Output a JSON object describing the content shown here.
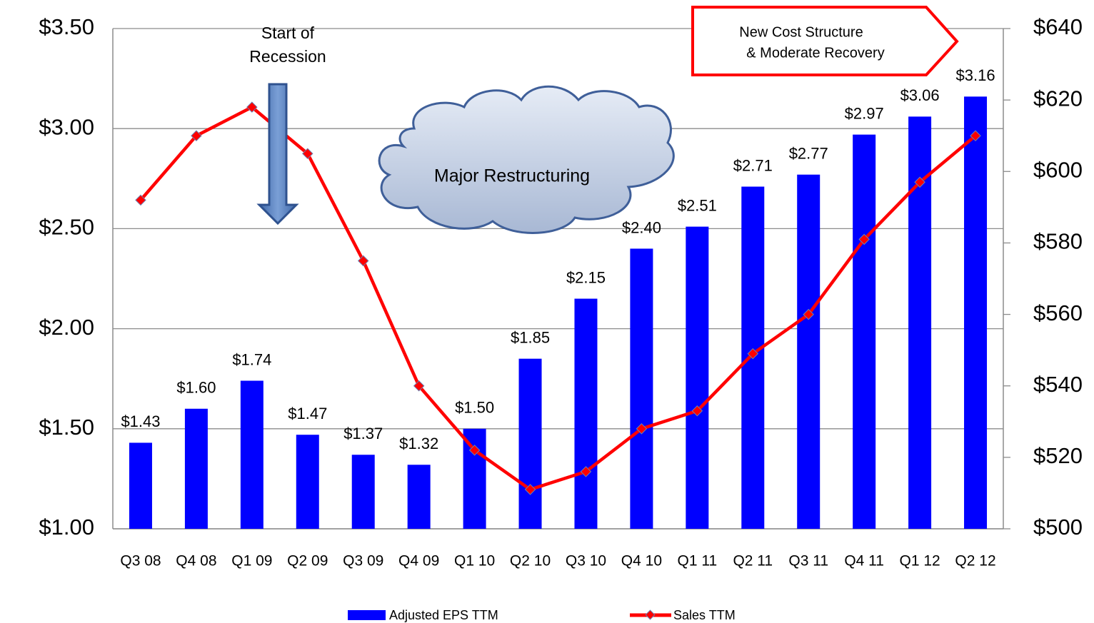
{
  "chart_data": {
    "type": "bar-line",
    "categories": [
      "Q3 08",
      "Q4 08",
      "Q1 09",
      "Q2 09",
      "Q3 09",
      "Q4 09",
      "Q1 10",
      "Q2 10",
      "Q3 10",
      "Q4 10",
      "Q1 11",
      "Q2 11",
      "Q3 11",
      "Q4 11",
      "Q1 12",
      "Q2 12"
    ],
    "series": [
      {
        "name": "Adjusted EPS TTM",
        "type": "bar",
        "color": "#0000ff",
        "values": [
          1.43,
          1.6,
          1.74,
          1.47,
          1.37,
          1.32,
          1.5,
          1.85,
          2.15,
          2.4,
          2.51,
          2.71,
          2.77,
          2.97,
          3.06,
          3.16
        ],
        "value_labels": [
          "$1.43",
          "$1.60",
          "$1.74",
          "$1.47",
          "$1.37",
          "$1.32",
          "$1.50",
          "$1.85",
          "$2.15",
          "$2.40",
          "$2.51",
          "$2.71",
          "$2.77",
          "$2.97",
          "$3.06",
          "$3.16"
        ]
      },
      {
        "name": "Sales TTM",
        "type": "line",
        "axis": "y2",
        "color": "#ff0000",
        "values": [
          592,
          610,
          618,
          605,
          575,
          540,
          522,
          511,
          516,
          528,
          533,
          549,
          560,
          581,
          597,
          610
        ]
      }
    ],
    "ylim": [
      1.0,
      3.5
    ],
    "yticks": [
      {
        "value": 1.0,
        "label": "$1.00"
      },
      {
        "value": 1.5,
        "label": "$1.50"
      },
      {
        "value": 2.0,
        "label": "$2.00"
      },
      {
        "value": 2.5,
        "label": "$2.50"
      },
      {
        "value": 3.0,
        "label": "$3.00"
      },
      {
        "value": 3.5,
        "label": "$3.50"
      }
    ],
    "y2lim": [
      500,
      640
    ],
    "y2ticks": [
      {
        "value": 500,
        "label": "$500"
      },
      {
        "value": 520,
        "label": "$520"
      },
      {
        "value": 540,
        "label": "$540"
      },
      {
        "value": 560,
        "label": "$560"
      },
      {
        "value": 580,
        "label": "$580"
      },
      {
        "value": 600,
        "label": "$600"
      },
      {
        "value": 620,
        "label": "$620"
      },
      {
        "value": 640,
        "label": "$640"
      }
    ],
    "grid": true,
    "legend": "bottom",
    "annotations": [
      {
        "lines": [
          "Start of",
          "Recession"
        ]
      },
      {
        "lines": [
          "Major Restructuring"
        ]
      },
      {
        "lines": [
          "New Cost Structure",
          "& Moderate Recovery"
        ]
      }
    ]
  }
}
